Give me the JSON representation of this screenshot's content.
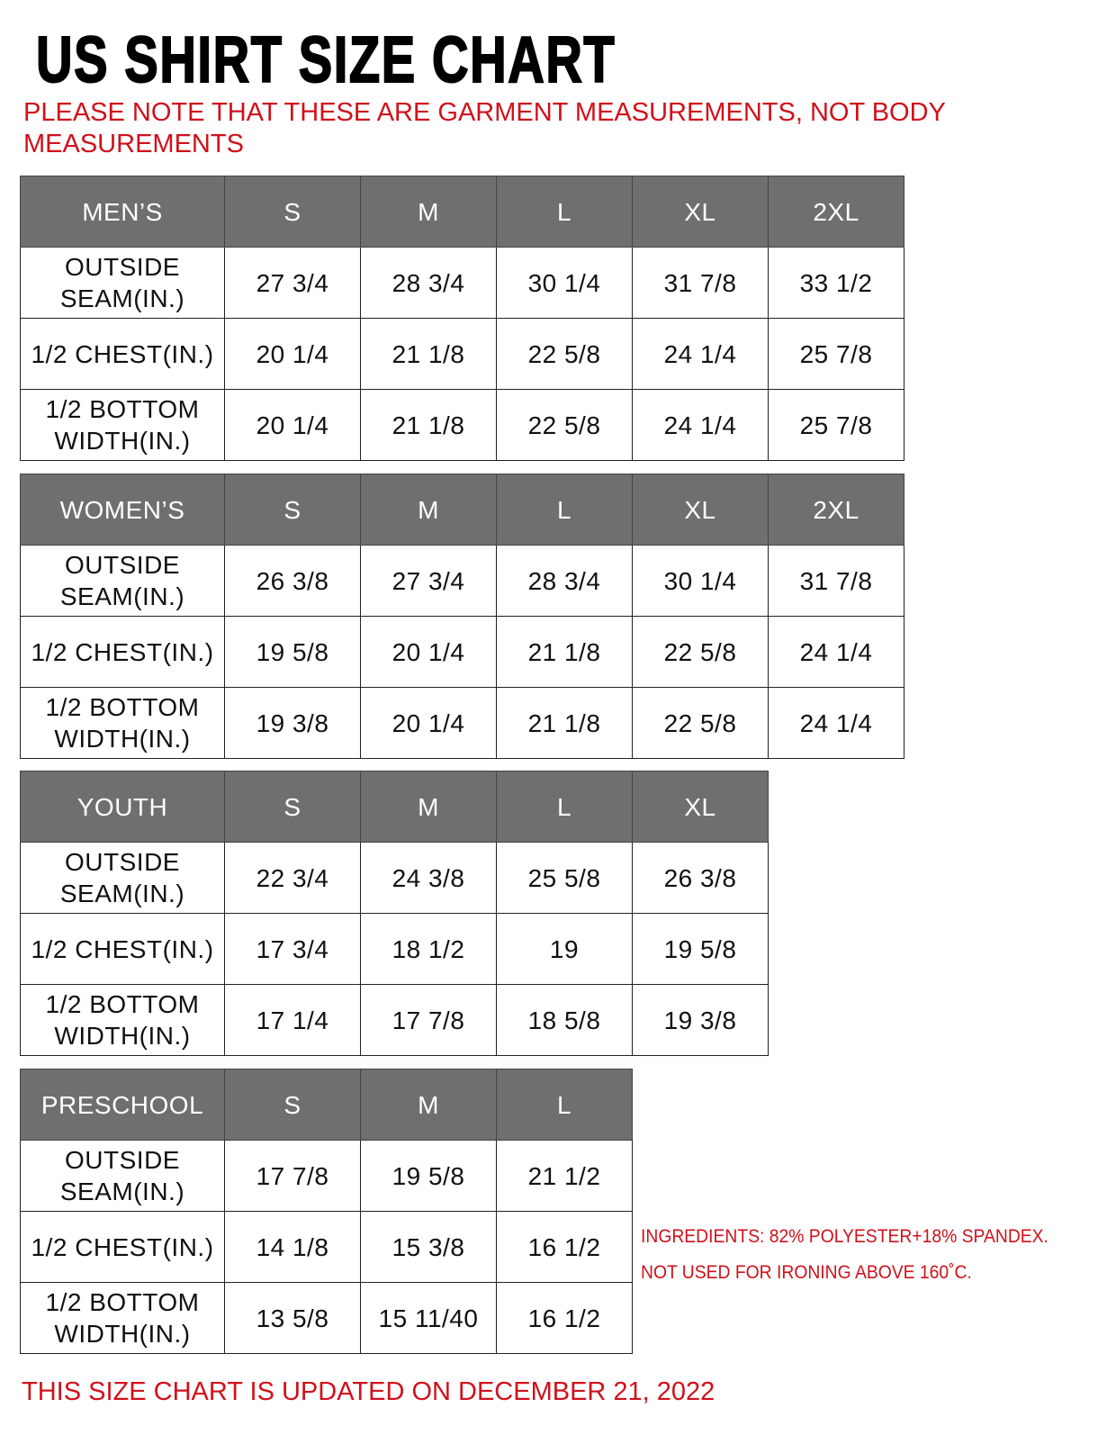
{
  "title": "US SHIRT SIZE CHART",
  "note": "PLEASE NOTE THAT THESE ARE GARMENT MEASUREMENTS, NOT BODY MEASUREMENTS",
  "tables": [
    {
      "header": "MEN’S",
      "sizes": [
        "S",
        "M",
        "L",
        "XL",
        "2XL"
      ],
      "rows": [
        {
          "label": [
            "OUTSIDE",
            "SEAM(IN.)"
          ],
          "values": [
            "27 3/4",
            "28 3/4",
            "30 1/4",
            "31 7/8",
            "33 1/2"
          ]
        },
        {
          "label": [
            "1/2 CHEST(IN.)"
          ],
          "values": [
            "20 1/4",
            "21 1/8",
            "22 5/8",
            "24 1/4",
            "25 7/8"
          ]
        },
        {
          "label": [
            "1/2 BOTTOM",
            "WIDTH(IN.)"
          ],
          "values": [
            "20 1/4",
            "21 1/8",
            "22 5/8",
            "24 1/4",
            "25 7/8"
          ]
        }
      ]
    },
    {
      "header": "WOMEN’S",
      "sizes": [
        "S",
        "M",
        "L",
        "XL",
        "2XL"
      ],
      "rows": [
        {
          "label": [
            "OUTSIDE",
            "SEAM(IN.)"
          ],
          "values": [
            "26 3/8",
            "27 3/4",
            "28 3/4",
            "30 1/4",
            "31 7/8"
          ]
        },
        {
          "label": [
            "1/2 CHEST(IN.)"
          ],
          "values": [
            "19 5/8",
            "20 1/4",
            "21 1/8",
            "22 5/8",
            "24 1/4"
          ]
        },
        {
          "label": [
            "1/2 BOTTOM",
            "WIDTH(IN.)"
          ],
          "values": [
            "19 3/8",
            "20 1/4",
            "21 1/8",
            "22 5/8",
            "24 1/4"
          ]
        }
      ]
    },
    {
      "header": "YOUTH",
      "sizes": [
        "S",
        "M",
        "L",
        "XL"
      ],
      "rows": [
        {
          "label": [
            "OUTSIDE",
            "SEAM(IN.)"
          ],
          "values": [
            "22 3/4",
            "24 3/8",
            "25 5/8",
            "26 3/8"
          ]
        },
        {
          "label": [
            "1/2 CHEST(IN.)"
          ],
          "values": [
            "17 3/4",
            "18 1/2",
            "19",
            "19 5/8"
          ]
        },
        {
          "label": [
            "1/2 BOTTOM",
            "WIDTH(IN.)"
          ],
          "values": [
            "17 1/4",
            "17 7/8",
            "18 5/8",
            "19 3/8"
          ]
        }
      ]
    },
    {
      "header": "PRESCHOOL",
      "sizes": [
        "S",
        "M",
        "L"
      ],
      "rows": [
        {
          "label": [
            "OUTSIDE",
            "SEAM(IN.)"
          ],
          "values": [
            "17 7/8",
            "19 5/8",
            "21 1/2"
          ]
        },
        {
          "label": [
            "1/2 CHEST(IN.)"
          ],
          "values": [
            "14 1/8",
            "15 3/8",
            "16 1/2"
          ]
        },
        {
          "label": [
            "1/2 BOTTOM",
            "WIDTH(IN.)"
          ],
          "values": [
            "13 5/8",
            "15 11/40",
            "16 1/2"
          ]
        }
      ]
    }
  ],
  "ingredients": "INGREDIENTS: 82% POLYESTER+18% SPANDEX.",
  "ironing": "NOT USED FOR IRONING ABOVE 160˚C.",
  "footer": "THIS SIZE CHART IS UPDATED ON DECEMBER 21, 2022",
  "colors": {
    "header_bg": "#6f6f6f",
    "accent_red": "#d0111b"
  }
}
